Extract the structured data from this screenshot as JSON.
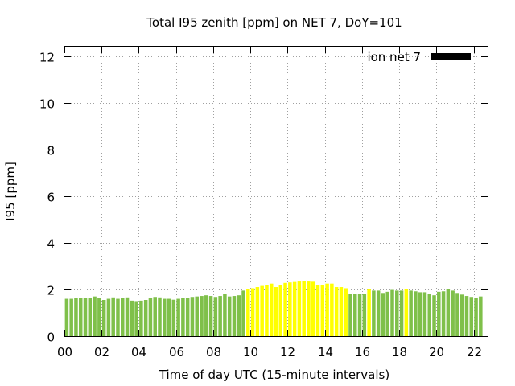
{
  "chart_data": {
    "type": "bar",
    "title": "Total I95 zenith [ppm] on NET 7, DoY=101",
    "xlabel": "Time of day UTC (15-minute intervals)",
    "ylabel": "I95 [ppm]",
    "xlim": [
      0,
      22.75
    ],
    "ylim": [
      0,
      12.4
    ],
    "x_ticks": [
      "00",
      "02",
      "04",
      "06",
      "08",
      "10",
      "12",
      "14",
      "16",
      "18",
      "20",
      "22"
    ],
    "y_ticks": [
      "0",
      "2",
      "4",
      "6",
      "8",
      "10",
      "12"
    ],
    "grid": true,
    "legend": {
      "label": "ion net 7",
      "color": "#000000",
      "position": "top-right"
    },
    "colors": {
      "default": "#7fc04a",
      "highlight": "#ffff00"
    },
    "x_start_hours": 0,
    "x_step_hours": 0.25,
    "values": [
      1.6,
      1.6,
      1.62,
      1.62,
      1.62,
      1.62,
      1.7,
      1.65,
      1.55,
      1.6,
      1.66,
      1.6,
      1.64,
      1.66,
      1.52,
      1.5,
      1.52,
      1.55,
      1.62,
      1.68,
      1.66,
      1.6,
      1.6,
      1.56,
      1.6,
      1.62,
      1.64,
      1.68,
      1.7,
      1.72,
      1.75,
      1.72,
      1.68,
      1.72,
      1.8,
      1.7,
      1.72,
      1.75,
      1.95,
      2.0,
      2.05,
      2.1,
      2.15,
      2.2,
      2.25,
      2.1,
      2.2,
      2.28,
      2.3,
      2.32,
      2.34,
      2.35,
      2.34,
      2.33,
      2.2,
      2.2,
      2.25,
      2.25,
      2.1,
      2.1,
      2.05,
      1.82,
      1.8,
      1.8,
      1.82,
      2.0,
      1.95,
      1.95,
      1.85,
      1.9,
      1.98,
      1.95,
      1.95,
      2.0,
      1.95,
      1.92,
      1.88,
      1.88,
      1.8,
      1.75,
      1.9,
      1.92,
      2.0,
      1.95,
      1.85,
      1.78,
      1.72,
      1.68,
      1.65,
      1.7
    ],
    "highlight_flags": [
      0,
      0,
      0,
      0,
      0,
      0,
      0,
      0,
      0,
      0,
      0,
      0,
      0,
      0,
      0,
      0,
      0,
      0,
      0,
      0,
      0,
      0,
      0,
      0,
      0,
      0,
      0,
      0,
      0,
      0,
      0,
      0,
      0,
      0,
      0,
      0,
      0,
      0,
      0,
      1,
      1,
      1,
      1,
      1,
      1,
      1,
      1,
      1,
      1,
      1,
      1,
      1,
      1,
      1,
      1,
      1,
      1,
      1,
      1,
      1,
      1,
      0,
      0,
      0,
      0,
      1,
      0,
      0,
      0,
      0,
      0,
      0,
      0,
      1,
      0,
      0,
      0,
      0,
      0,
      0,
      0,
      0,
      0,
      0,
      0,
      0,
      0,
      0,
      0,
      0
    ]
  }
}
